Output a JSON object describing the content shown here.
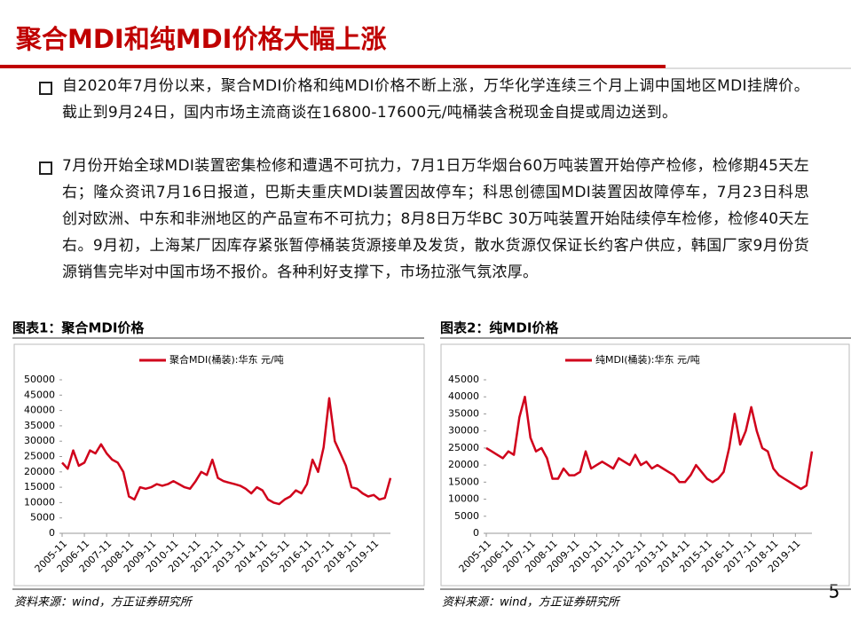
{
  "title": "聚合MDI和纯MDI价格大幅上涨",
  "bullets": [
    "自2020年7月份以来，聚合MDI价格和纯MDI价格不断上涨，万华化学连续三个月上调中国地区MDI挂牌价。截止到9月24日，国内市场主流商谈在16800-17600元/吨桶装含税现金自提或周边送到。",
    "7月份开始全球MDI装置密集检修和遭遇不可抗力，7月1日万华烟台60万吨装置开始停产检修，检修期45天左右；隆众资讯7月16日报道，巴斯夫重庆MDI装置因故停车；科思创德国MDI装置因故障停车，7月23日科思创对欧洲、中东和非洲地区的产品宣布不可抗力；8月8日万华BC 30万吨装置开始陆续停车检修，检修40天左右。9月初，上海某厂因库存紧张暂停桶装货源接单及发货，散水货源仅保证长约客户供应，韩国厂家9月份货源销售完毕对中国市场不报价。各种利好支撑下，市场拉涨气氛浓厚。"
  ],
  "figures": [
    {
      "caption": "图表1：聚合MDI价格",
      "source": "资料来源：wind，方正证券研究所"
    },
    {
      "caption": "图表2：纯MDI价格",
      "source": "资料来源：wind，方正证券研究所"
    }
  ],
  "page_number": "5",
  "chart_data": [
    {
      "type": "line",
      "legend": "top",
      "x": [
        "2005-11",
        "2006-02",
        "2006-05",
        "2006-08",
        "2006-11",
        "2007-02",
        "2007-05",
        "2007-08",
        "2007-11",
        "2008-02",
        "2008-05",
        "2008-08",
        "2008-11",
        "2009-02",
        "2009-05",
        "2009-08",
        "2009-11",
        "2010-02",
        "2010-05",
        "2010-08",
        "2010-11",
        "2011-02",
        "2011-05",
        "2011-08",
        "2011-11",
        "2012-02",
        "2012-05",
        "2012-08",
        "2012-11",
        "2013-02",
        "2013-05",
        "2013-08",
        "2013-11",
        "2014-02",
        "2014-05",
        "2014-08",
        "2014-11",
        "2015-02",
        "2015-05",
        "2015-08",
        "2015-11",
        "2016-02",
        "2016-05",
        "2016-08",
        "2016-11",
        "2017-02",
        "2017-05",
        "2017-08",
        "2017-11",
        "2018-02",
        "2018-05",
        "2018-08",
        "2018-11",
        "2019-02",
        "2019-05",
        "2019-08",
        "2019-11",
        "2020-02",
        "2020-05",
        "2020-08"
      ],
      "series": [
        {
          "name": "聚合MDI(桶装):华东 元/吨",
          "color": "#d0021b",
          "values": [
            23000,
            21000,
            27000,
            22000,
            23000,
            27000,
            26000,
            29000,
            26000,
            24000,
            23000,
            20000,
            12000,
            11000,
            15000,
            14500,
            15000,
            16000,
            15500,
            16000,
            17000,
            16000,
            15000,
            14500,
            17000,
            20000,
            19000,
            24000,
            18000,
            17000,
            16500,
            16000,
            15500,
            14500,
            13000,
            15000,
            14000,
            11000,
            10000,
            9500,
            11000,
            12000,
            14000,
            13000,
            16000,
            24000,
            20000,
            28000,
            44000,
            30000,
            26000,
            22000,
            15000,
            14500,
            13000,
            12000,
            12500,
            11000,
            11500,
            18000
          ]
        }
      ],
      "xticks": [
        "2005-11",
        "2006-11",
        "2007-11",
        "2008-11",
        "2009-11",
        "2010-11",
        "2011-11",
        "2012-11",
        "2013-11",
        "2014-11",
        "2015-11",
        "2016-11",
        "2017-11",
        "2018-11",
        "2019-11"
      ],
      "ylim": [
        0,
        50000
      ],
      "yticks": [
        0,
        5000,
        10000,
        15000,
        20000,
        25000,
        30000,
        35000,
        40000,
        45000,
        50000
      ]
    },
    {
      "type": "line",
      "legend": "top",
      "x": [
        "2005-11",
        "2006-02",
        "2006-05",
        "2006-08",
        "2006-11",
        "2007-02",
        "2007-05",
        "2007-08",
        "2007-11",
        "2008-02",
        "2008-05",
        "2008-08",
        "2008-11",
        "2009-02",
        "2009-05",
        "2009-08",
        "2009-11",
        "2010-02",
        "2010-05",
        "2010-08",
        "2010-11",
        "2011-02",
        "2011-05",
        "2011-08",
        "2011-11",
        "2012-02",
        "2012-05",
        "2012-08",
        "2012-11",
        "2013-02",
        "2013-05",
        "2013-08",
        "2013-11",
        "2014-02",
        "2014-05",
        "2014-08",
        "2014-11",
        "2015-02",
        "2015-05",
        "2015-08",
        "2015-11",
        "2016-02",
        "2016-05",
        "2016-08",
        "2016-11",
        "2017-02",
        "2017-05",
        "2017-08",
        "2017-11",
        "2018-02",
        "2018-05",
        "2018-08",
        "2018-11",
        "2019-02",
        "2019-05",
        "2019-08",
        "2019-11",
        "2020-02",
        "2020-05",
        "2020-08"
      ],
      "series": [
        {
          "name": "纯MDI(桶装):华东 元/吨",
          "color": "#d0021b",
          "values": [
            25000,
            24000,
            23000,
            22000,
            24000,
            23000,
            34000,
            40000,
            28000,
            24000,
            25000,
            22000,
            16000,
            16000,
            19000,
            17000,
            17000,
            18000,
            24000,
            19000,
            20000,
            21000,
            20000,
            19000,
            22000,
            21000,
            20000,
            23000,
            20000,
            21000,
            19000,
            20000,
            19000,
            18000,
            17000,
            15000,
            15000,
            17000,
            20000,
            18000,
            16000,
            15000,
            16000,
            18000,
            25000,
            35000,
            26000,
            30000,
            37000,
            30000,
            25000,
            24000,
            19000,
            17000,
            16000,
            15000,
            14000,
            13000,
            14000,
            24000
          ]
        }
      ],
      "xticks": [
        "2005-11",
        "2006-11",
        "2007-11",
        "2008-11",
        "2009-11",
        "2010-11",
        "2011-11",
        "2012-11",
        "2013-11",
        "2014-11",
        "2015-11",
        "2016-11",
        "2017-11",
        "2018-11",
        "2019-11"
      ],
      "ylim": [
        0,
        45000
      ],
      "yticks": [
        0,
        5000,
        10000,
        15000,
        20000,
        25000,
        30000,
        35000,
        40000,
        45000
      ]
    }
  ]
}
